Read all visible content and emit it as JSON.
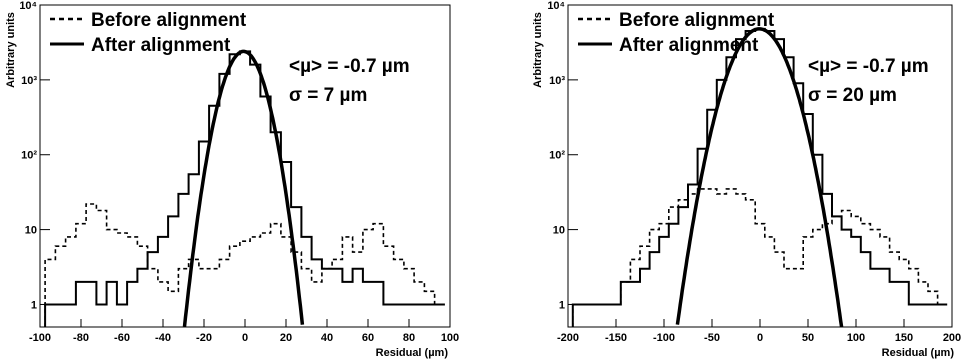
{
  "chart_data": [
    {
      "type": "line",
      "xlabel": "Residual (µm)",
      "ylabel": "Arbitrary units",
      "xlim": [
        -100,
        100
      ],
      "ylim": [
        0.5,
        10000
      ],
      "yscale": "log",
      "grid": false,
      "legend_position": "top-left",
      "xticks": [
        "-100",
        "-80",
        "-60",
        "-40",
        "-20",
        "0",
        "20",
        "40",
        "60",
        "80",
        "100"
      ],
      "yticks": [
        "1",
        "10",
        "10²",
        "10³",
        "10⁴"
      ],
      "annotations": [
        "<µ> = -0.7 µm",
        "σ = 7 µm"
      ],
      "series": [
        {
          "name": "Before alignment",
          "style": "dashed",
          "kind": "histogram",
          "x": [
            -95,
            -90,
            -85,
            -80,
            -75,
            -70,
            -65,
            -60,
            -55,
            -50,
            -45,
            -40,
            -35,
            -30,
            -25,
            -20,
            -15,
            -10,
            -5,
            0,
            5,
            10,
            15,
            20,
            25,
            30,
            35,
            40,
            45,
            50,
            55,
            60,
            65,
            70,
            75,
            80,
            85,
            90,
            95
          ],
          "y": [
            4,
            6,
            8,
            12,
            22,
            18,
            10,
            9,
            8,
            6,
            3,
            2,
            1.5,
            3,
            4,
            3,
            3,
            4,
            6,
            7,
            8,
            9,
            12,
            8,
            5,
            3,
            2,
            3,
            4,
            8,
            5,
            10,
            12,
            6,
            4,
            3,
            2,
            1.5,
            1
          ]
        },
        {
          "name": "After alignment",
          "style": "solid",
          "kind": "histogram",
          "x": [
            -95,
            -90,
            -85,
            -80,
            -75,
            -70,
            -65,
            -60,
            -55,
            -50,
            -45,
            -40,
            -35,
            -30,
            -25,
            -20,
            -15,
            -10,
            -5,
            0,
            5,
            10,
            15,
            20,
            25,
            30,
            35,
            40,
            45,
            50,
            55,
            60,
            65,
            70,
            75,
            80,
            85,
            90,
            95
          ],
          "y": [
            1,
            1,
            1,
            2,
            2,
            1,
            2,
            1,
            2,
            3,
            5,
            8,
            15,
            30,
            55,
            150,
            450,
            1200,
            2200,
            2400,
            1600,
            600,
            200,
            80,
            20,
            8,
            4,
            3,
            3,
            2,
            3,
            2,
            2,
            1,
            1,
            1,
            1,
            1,
            1
          ]
        },
        {
          "name": "",
          "style": "fit",
          "kind": "gaussian",
          "mean": -0.7,
          "sigma": 7,
          "amplitude": 2400
        }
      ]
    },
    {
      "type": "line",
      "xlabel": "Residual (µm)",
      "ylabel": "Arbitrary units",
      "xlim": [
        -200,
        200
      ],
      "ylim": [
        0.5,
        10000
      ],
      "yscale": "log",
      "grid": false,
      "legend_position": "top-left",
      "xticks": [
        "-200",
        "-150",
        "-100",
        "-50",
        "0",
        "50",
        "100",
        "150",
        "200"
      ],
      "yticks": [
        "1",
        "10",
        "10²",
        "10³",
        "10⁴"
      ],
      "annotations": [
        "<µ> = -0.7 µm",
        "σ = 20 µm"
      ],
      "series": [
        {
          "name": "Before alignment",
          "style": "dashed",
          "kind": "histogram",
          "x": [
            -190,
            -180,
            -170,
            -160,
            -150,
            -140,
            -130,
            -120,
            -110,
            -100,
            -90,
            -80,
            -70,
            -60,
            -50,
            -40,
            -30,
            -20,
            -10,
            0,
            10,
            20,
            30,
            40,
            50,
            60,
            70,
            80,
            90,
            100,
            110,
            120,
            130,
            140,
            150,
            160,
            170,
            180,
            190
          ],
          "y": [
            1,
            1,
            1,
            1,
            1,
            2,
            4,
            6,
            10,
            12,
            20,
            25,
            30,
            35,
            35,
            30,
            35,
            30,
            25,
            12,
            8,
            5,
            3,
            3,
            8,
            10,
            12,
            15,
            18,
            15,
            12,
            10,
            8,
            5,
            4,
            3,
            2,
            1.5,
            1
          ]
        },
        {
          "name": "After alignment",
          "style": "solid",
          "kind": "histogram",
          "x": [
            -190,
            -180,
            -170,
            -160,
            -150,
            -140,
            -130,
            -120,
            -110,
            -100,
            -90,
            -80,
            -70,
            -60,
            -50,
            -40,
            -30,
            -20,
            -10,
            0,
            10,
            20,
            30,
            40,
            50,
            60,
            70,
            80,
            90,
            100,
            110,
            120,
            130,
            140,
            150,
            160,
            170,
            180,
            190
          ],
          "y": [
            1,
            1,
            1,
            1,
            1,
            2,
            2,
            3,
            5,
            8,
            12,
            20,
            40,
            120,
            400,
            1000,
            2000,
            3500,
            4500,
            4800,
            4500,
            3500,
            2000,
            900,
            350,
            100,
            30,
            15,
            10,
            8,
            5,
            3,
            3,
            2,
            2,
            1,
            1,
            1,
            1
          ]
        },
        {
          "name": "",
          "style": "fit",
          "kind": "gaussian",
          "mean": -0.7,
          "sigma": 20,
          "amplitude": 4800
        }
      ]
    }
  ]
}
